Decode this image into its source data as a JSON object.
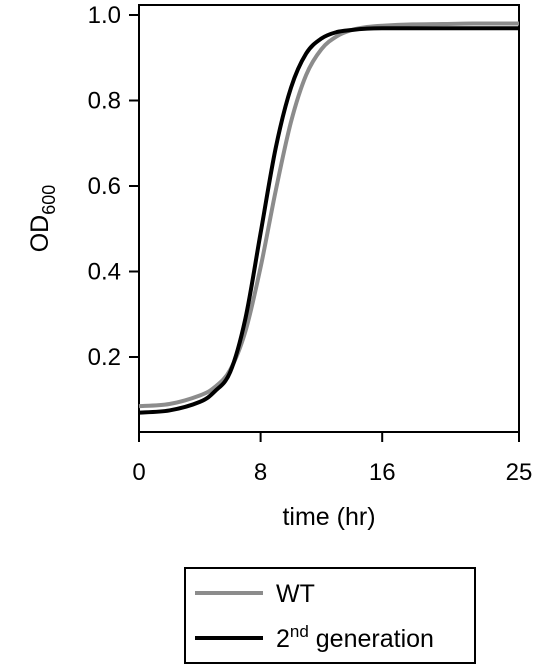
{
  "chart_data": {
    "type": "line",
    "title": "",
    "xlabel": "time (hr)",
    "ylabel_main": "OD",
    "ylabel_sub": "600",
    "xlim": [
      0,
      25
    ],
    "ylim": [
      0,
      1.0
    ],
    "x_ticks": [
      0,
      8,
      16,
      25
    ],
    "x_tick_labels": [
      "0",
      "8",
      "16",
      "25"
    ],
    "y_ticks": [
      0.2,
      0.4,
      0.6,
      0.8,
      1.0
    ],
    "y_tick_labels": [
      "0.2",
      "0.4",
      "0.6",
      "0.8",
      "1.0"
    ],
    "grid": false,
    "legend_position": "bottom, outside",
    "series": [
      {
        "name": "WT",
        "color": "#8c8c8c",
        "x": [
          0,
          2,
          4,
          5,
          6,
          7,
          8,
          9,
          10,
          11,
          12,
          13,
          14,
          15,
          16,
          18,
          20,
          22,
          25
        ],
        "y": [
          0.085,
          0.09,
          0.11,
          0.13,
          0.17,
          0.26,
          0.41,
          0.59,
          0.75,
          0.86,
          0.92,
          0.95,
          0.965,
          0.972,
          0.975,
          0.978,
          0.979,
          0.98,
          0.98
        ]
      },
      {
        "name_main": "2",
        "name_sup": "nd",
        "name_rest": " generation",
        "color": "#000000",
        "x": [
          0,
          2,
          4,
          5,
          6,
          7,
          8,
          9,
          10,
          11,
          12,
          13,
          14,
          15,
          16,
          18,
          20,
          22,
          25
        ],
        "y": [
          0.07,
          0.075,
          0.095,
          0.12,
          0.165,
          0.29,
          0.49,
          0.69,
          0.83,
          0.91,
          0.945,
          0.96,
          0.965,
          0.968,
          0.969,
          0.969,
          0.969,
          0.969,
          0.969
        ]
      }
    ]
  }
}
